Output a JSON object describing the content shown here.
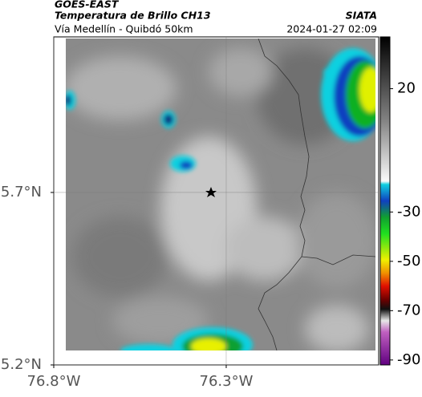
{
  "header": {
    "source": "GOES-EAST",
    "title": "Temperatura de Brillo CH13",
    "credit": "SIATA",
    "subtitle": "Vía Medellín - Quibdó 50km",
    "timestamp": "2024-01-27 02:09"
  },
  "map": {
    "xlim": [
      -76.8,
      -75.858
    ],
    "ylim": [
      5.2,
      6.151
    ],
    "xticks": [
      {
        "value": -76.8,
        "label": "76.8°W"
      },
      {
        "value": -76.3,
        "label": "76.3°W"
      }
    ],
    "yticks": [
      {
        "value": 5.7,
        "label": "5.7°N"
      },
      {
        "value": 5.2,
        "label": "5.2°N"
      }
    ],
    "grid": true
  },
  "colorbar": {
    "clim": [
      -92,
      41
    ],
    "ticks": [
      20,
      -30,
      -50,
      -70,
      -90
    ]
  }
}
